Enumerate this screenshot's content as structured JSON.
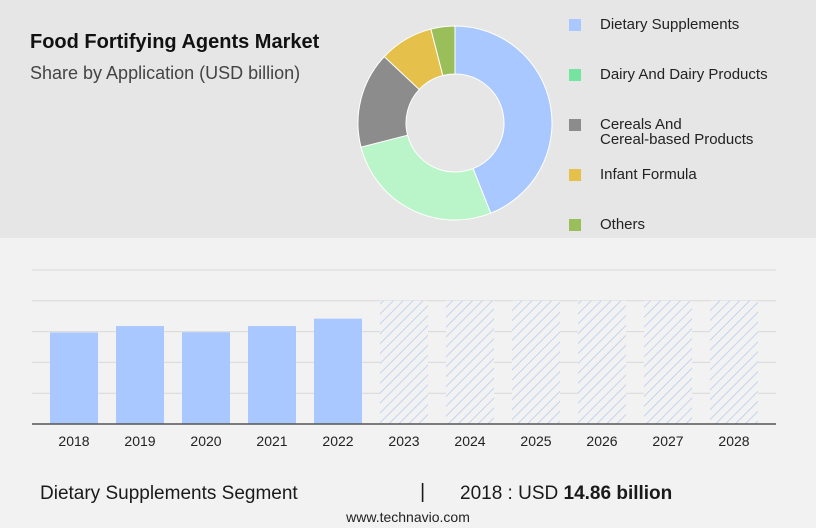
{
  "header": {
    "title": "Food Fortifying Agents Market",
    "subtitle": "Share by Application (USD billion)"
  },
  "legend": {
    "items": [
      {
        "label": "Dietary Supplements",
        "color": "#a9c8ff"
      },
      {
        "label": "Dairy And Dairy Products",
        "color": "#77e3a0"
      },
      {
        "label_line1": "Cereals And",
        "label_line2": "Cereal-based Products",
        "color": "#8c8c8c"
      },
      {
        "label": "Infant Formula",
        "color": "#e5c04a"
      },
      {
        "label": "Others",
        "color": "#9abf5a"
      }
    ]
  },
  "chart_data": [
    {
      "type": "pie",
      "donut": true,
      "slices": [
        {
          "label": "Dietary Supplements",
          "value": 44,
          "color": "#a9c8ff"
        },
        {
          "label": "Dairy And Dairy Products",
          "value": 27,
          "color": "#b9f5c8"
        },
        {
          "label": "Cereals And Cereal-based Products",
          "value": 16,
          "color": "#8c8c8c"
        },
        {
          "label": "Infant Formula",
          "value": 9,
          "color": "#e5c04a"
        },
        {
          "label": "Others",
          "value": 4,
          "color": "#9abf5a"
        }
      ]
    },
    {
      "type": "bar",
      "categories": [
        "2018",
        "2019",
        "2020",
        "2021",
        "2022",
        "2023",
        "2024",
        "2025",
        "2026",
        "2027",
        "2028"
      ],
      "values": [
        14.86,
        15.9,
        14.9,
        15.9,
        17.1,
        null,
        null,
        null,
        null,
        null,
        null
      ],
      "forecast_years": [
        "2023",
        "2024",
        "2025",
        "2026",
        "2027",
        "2028"
      ],
      "ylim": [
        0,
        25
      ],
      "grid": true,
      "bar_color": "#a9c8ff",
      "forecast_color": "#b8ccee"
    }
  ],
  "footer": {
    "segment": "Dietary Supplements Segment",
    "separator": "|",
    "year_label": "2018 : USD",
    "value": "14.86 billion",
    "source": "www.technavio.com"
  }
}
